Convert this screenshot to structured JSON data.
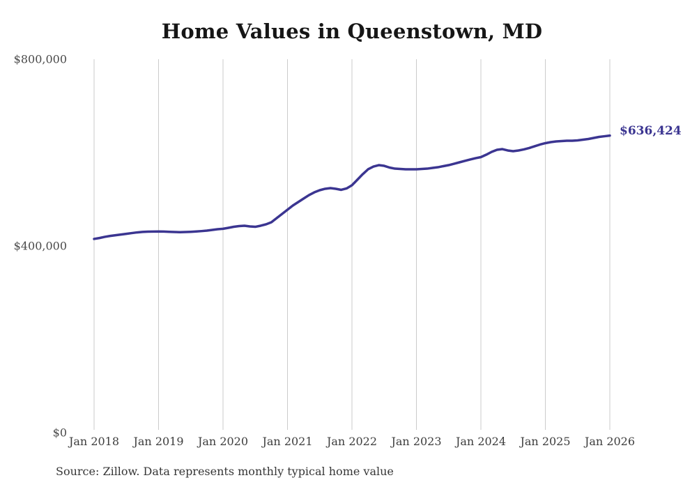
{
  "title": "Home Values in Queenstown, MD",
  "source": "Source: Zillow. Data represents monthly typical home value",
  "labels": {
    "end_value": "$636,424"
  },
  "colors": {
    "line": "#3b3591",
    "grid": "#cbcbcb",
    "x_tick_text": "#3d3d3d",
    "y_tick_text": "#4a4a4a",
    "title_text": "#161616",
    "source_text": "#363636",
    "background": "#ffffff"
  },
  "chart_data": {
    "type": "line",
    "title": "Home Values in Queenstown, MD",
    "xlabel": "",
    "ylabel": "",
    "ylim": [
      0,
      800000
    ],
    "y_tick_values": [
      0,
      400000,
      800000
    ],
    "y_tick_labels": [
      "$0",
      "$400,000",
      "$800,000"
    ],
    "x_tick_labels": [
      "Jan 2018",
      "Jan 2019",
      "Jan 2020",
      "Jan 2021",
      "Jan 2022",
      "Jan 2023",
      "Jan 2024",
      "Jan 2025",
      "Jan 2026"
    ],
    "x_start": "Jan 2018",
    "x_end": "Jan 2026",
    "frequency": "monthly",
    "grid": "vertical-only",
    "legend_position": "none",
    "last_value": 636424,
    "last_value_label": "$636,424",
    "series": [
      {
        "name": "Typical home value",
        "values": [
          415000,
          417000,
          419500,
          421500,
          423000,
          424500,
          426000,
          427500,
          429000,
          430000,
          430500,
          430800,
          431000,
          430700,
          430300,
          429800,
          429400,
          429800,
          430300,
          431000,
          431800,
          432800,
          434300,
          435800,
          436800,
          438800,
          441000,
          442500,
          443300,
          441800,
          441000,
          443300,
          446300,
          450700,
          459700,
          468600,
          477600,
          486600,
          494000,
          501500,
          508900,
          514900,
          519400,
          522400,
          523900,
          522400,
          520200,
          523200,
          530000,
          541800,
          553700,
          564200,
          570100,
          573100,
          571600,
          567900,
          565600,
          564900,
          564200,
          564200,
          564200,
          564900,
          565600,
          567100,
          568600,
          570900,
          573100,
          576100,
          579100,
          582100,
          585100,
          588000,
          590300,
          595500,
          601500,
          606000,
          607400,
          604500,
          603000,
          604500,
          606800,
          609800,
          613500,
          617200,
          620200,
          622400,
          623900,
          624600,
          625400,
          625400,
          626100,
          627600,
          629100,
          631300,
          633600,
          635000,
          636424
        ]
      }
    ]
  }
}
